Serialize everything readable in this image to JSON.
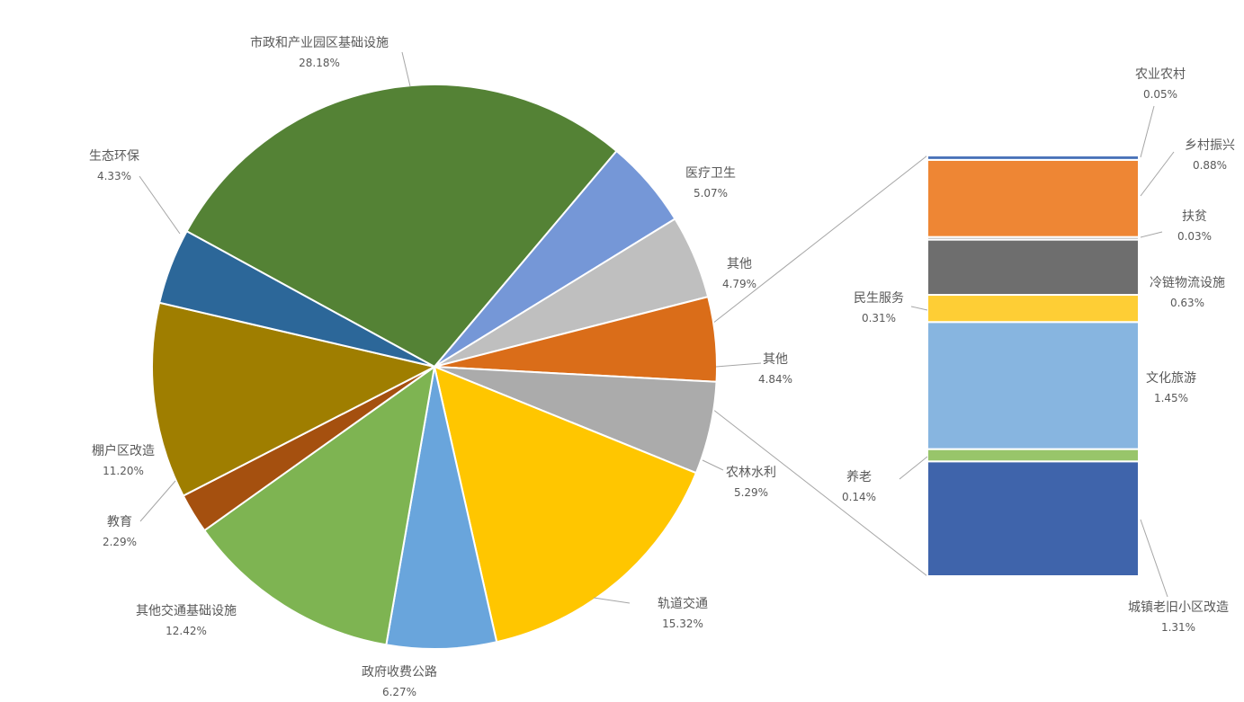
{
  "chart_data": {
    "type": "bar-of-pie",
    "pie": {
      "type": "pie",
      "slices": [
        {
          "label": "市政和产业园区基础设施",
          "value": 28.18,
          "display": "28.18%",
          "color": "#548235"
        },
        {
          "label": "医疗卫生",
          "value": 5.07,
          "display": "5.07%",
          "color": "#7597D7"
        },
        {
          "label": "其他",
          "value": 4.79,
          "display": "4.79%",
          "color": "#BFBFBF"
        },
        {
          "label": "其他",
          "value": 4.84,
          "display": "4.84%",
          "color": "#DA6D19"
        },
        {
          "label": "农林水利",
          "value": 5.29,
          "display": "5.29%",
          "color": "#ABABAB"
        },
        {
          "label": "轨道交通",
          "value": 15.32,
          "display": "15.32%",
          "color": "#FFC600"
        },
        {
          "label": "政府收费公路",
          "value": 6.27,
          "display": "6.27%",
          "color": "#69A5DC"
        },
        {
          "label": "其他交通基础设施",
          "value": 12.42,
          "display": "12.42%",
          "color": "#7EB452"
        },
        {
          "label": "教育",
          "value": 2.29,
          "display": "2.29%",
          "color": "#A5500F"
        },
        {
          "label": "棚户区改造",
          "value": 11.2,
          "display": "11.20%",
          "color": "#9F7E00"
        },
        {
          "label": "生态环保",
          "value": 4.33,
          "display": "4.33%",
          "color": "#2C6799"
        }
      ]
    },
    "bar": {
      "type": "stacked-bar",
      "segments": [
        {
          "label": "城镇老旧小区改造",
          "value": 1.31,
          "display": "1.31%",
          "color": "#3F64AB"
        },
        {
          "label": "养老",
          "value": 0.14,
          "display": "0.14%",
          "color": "#98C56A"
        },
        {
          "label": "文化旅游",
          "value": 1.45,
          "display": "1.45%",
          "color": "#87B5E0"
        },
        {
          "label": "民生服务",
          "value": 0.31,
          "display": "0.31%",
          "color": "#FECE35"
        },
        {
          "label": "冷链物流设施",
          "value": 0.63,
          "display": "0.63%",
          "color": "#6E6E6E"
        },
        {
          "label": "扶贫",
          "value": 0.03,
          "display": "0.03%",
          "color": "#A9A9A9"
        },
        {
          "label": "乡村振兴",
          "value": 0.88,
          "display": "0.88%",
          "color": "#EE8634"
        },
        {
          "label": "农业农村",
          "value": 0.05,
          "display": "0.05%",
          "color": "#4A73B9"
        }
      ]
    }
  }
}
